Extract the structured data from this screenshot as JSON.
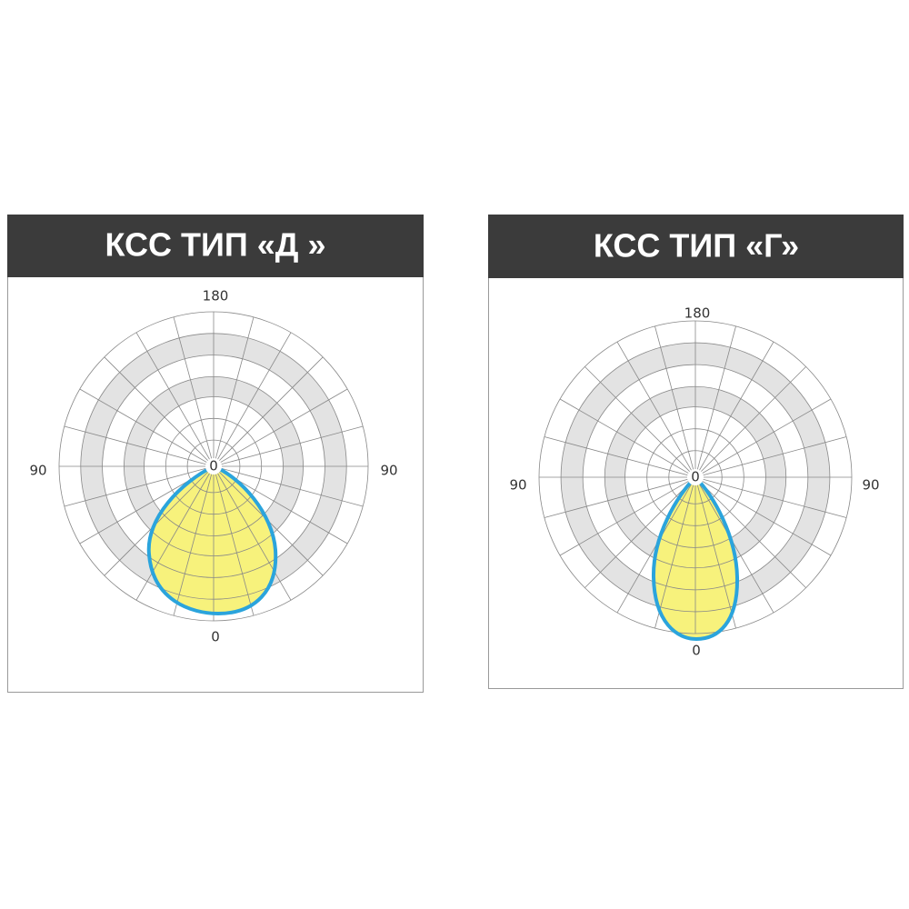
{
  "panels": [
    {
      "title": "КСС ТИП «Д »",
      "labels": {
        "top": "180",
        "left": "90",
        "right": "90",
        "center": "0",
        "bottom": "0"
      }
    },
    {
      "title": "КСС ТИП «Г»",
      "labels": {
        "top": "180",
        "left": "90",
        "right": "90",
        "center": "0",
        "bottom": "0"
      }
    }
  ]
}
